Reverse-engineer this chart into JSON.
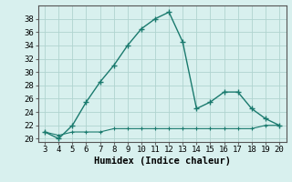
{
  "x": [
    3,
    4,
    5,
    6,
    7,
    8,
    9,
    10,
    11,
    12,
    13,
    14,
    15,
    16,
    17,
    18,
    19,
    20
  ],
  "y_main": [
    21,
    20,
    22,
    25.5,
    28.5,
    31,
    34,
    36.5,
    38,
    39,
    34.5,
    24.5,
    25.5,
    27,
    27,
    24.5,
    23,
    22
  ],
  "y_flat": [
    21,
    20.5,
    21,
    21,
    21,
    21.5,
    21.5,
    21.5,
    21.5,
    21.5,
    21.5,
    21.5,
    21.5,
    21.5,
    21.5,
    21.5,
    22,
    22
  ],
  "line_color": "#1a7a6e",
  "bg_color": "#d8f0ee",
  "grid_color": "#b0d4d0",
  "xlabel": "Humidex (Indice chaleur)",
  "ylim": [
    19.5,
    40.0
  ],
  "xlim": [
    2.5,
    20.5
  ],
  "yticks": [
    20,
    22,
    24,
    26,
    28,
    30,
    32,
    34,
    36,
    38
  ],
  "xticks": [
    3,
    4,
    5,
    6,
    7,
    8,
    9,
    10,
    11,
    12,
    13,
    14,
    15,
    16,
    17,
    18,
    19,
    20
  ],
  "tick_fontsize": 6.5,
  "xlabel_fontsize": 7.5
}
